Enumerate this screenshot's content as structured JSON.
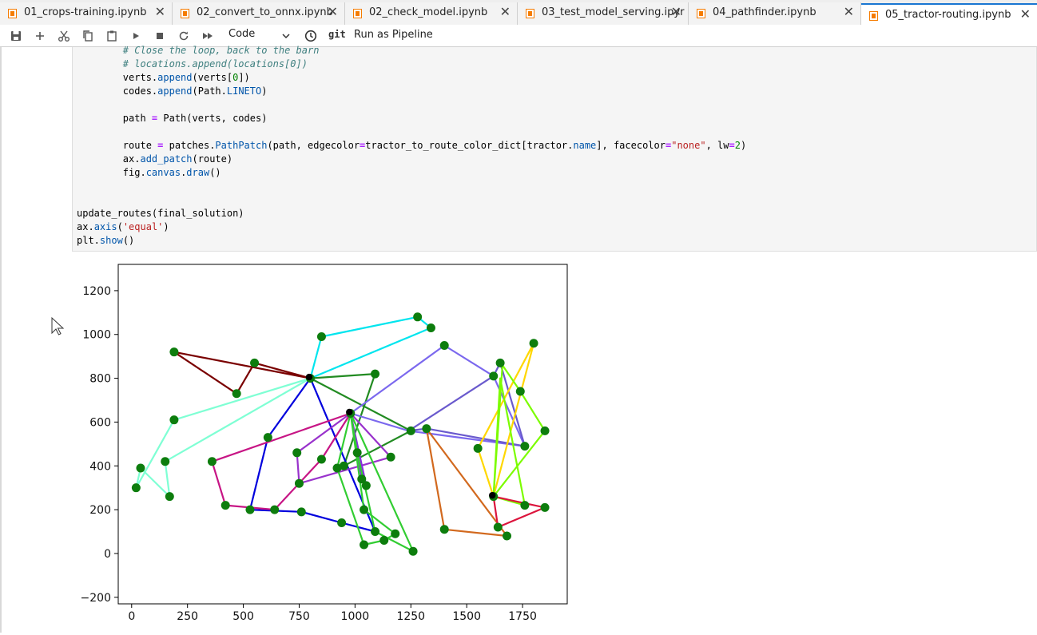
{
  "tabs": [
    {
      "label": "01_crops-training.ipynb",
      "active": false
    },
    {
      "label": "02_convert_to_onnx.ipynb",
      "active": false
    },
    {
      "label": "02_check_model.ipynb",
      "active": false
    },
    {
      "label": "03_test_model_serving.ipyr",
      "active": false
    },
    {
      "label": "04_pathfinder.ipynb",
      "active": false
    },
    {
      "label": "05_tractor-routing.ipynb",
      "active": true
    }
  ],
  "toolbar": {
    "cell_type": "Code",
    "git_label": "git",
    "pipeline_label": "Run as Pipeline",
    "icons": [
      "save-icon",
      "add-icon",
      "cut-icon",
      "copy-icon",
      "paste-icon",
      "run-icon",
      "stop-icon",
      "restart-icon",
      "run-all-icon"
    ]
  },
  "code_lines": [
    {
      "indent": "        ",
      "parts": [
        [
          "c",
          "# Close the loop, back to the barn"
        ]
      ]
    },
    {
      "indent": "        ",
      "parts": [
        [
          "c",
          "# locations.append(locations[0])"
        ]
      ]
    },
    {
      "indent": "        ",
      "parts": [
        [
          "t",
          "verts."
        ],
        [
          "a",
          "append"
        ],
        [
          "t",
          "(verts["
        ],
        [
          "n",
          "0"
        ],
        [
          "t",
          "])"
        ]
      ]
    },
    {
      "indent": "        ",
      "parts": [
        [
          "t",
          "codes."
        ],
        [
          "a",
          "append"
        ],
        [
          "t",
          "(Path."
        ],
        [
          "a",
          "LINETO"
        ],
        [
          "t",
          ")"
        ]
      ]
    },
    {
      "indent": "",
      "parts": []
    },
    {
      "indent": "        ",
      "parts": [
        [
          "t",
          "path "
        ],
        [
          "o",
          "="
        ],
        [
          "t",
          " Path(verts, codes)"
        ]
      ]
    },
    {
      "indent": "",
      "parts": []
    },
    {
      "indent": "        ",
      "parts": [
        [
          "t",
          "route "
        ],
        [
          "o",
          "="
        ],
        [
          "t",
          " patches."
        ],
        [
          "a",
          "PathPatch"
        ],
        [
          "t",
          "(path, edgecolor"
        ],
        [
          "o",
          "="
        ],
        [
          "t",
          "tractor_to_route_color_dict[tractor."
        ],
        [
          "a",
          "name"
        ],
        [
          "t",
          "], facecolor"
        ],
        [
          "o",
          "="
        ],
        [
          "s",
          "\"none\""
        ],
        [
          "t",
          ", lw"
        ],
        [
          "o",
          "="
        ],
        [
          "n",
          "2"
        ],
        [
          "t",
          ")"
        ]
      ]
    },
    {
      "indent": "        ",
      "parts": [
        [
          "t",
          "ax."
        ],
        [
          "a",
          "add_patch"
        ],
        [
          "t",
          "(route)"
        ]
      ]
    },
    {
      "indent": "        ",
      "parts": [
        [
          "t",
          "fig."
        ],
        [
          "a",
          "canvas"
        ],
        [
          "t",
          "."
        ],
        [
          "a",
          "draw"
        ],
        [
          "t",
          "()"
        ]
      ]
    },
    {
      "indent": "",
      "parts": []
    },
    {
      "indent": "",
      "parts": []
    },
    {
      "indent": "",
      "parts": [
        [
          "t",
          "update_routes(final_solution)"
        ]
      ]
    },
    {
      "indent": "",
      "parts": [
        [
          "t",
          "ax."
        ],
        [
          "a",
          "axis"
        ],
        [
          "t",
          "("
        ],
        [
          "s",
          "'equal'"
        ],
        [
          "t",
          ")"
        ]
      ]
    },
    {
      "indent": "",
      "parts": [
        [
          "t",
          "plt."
        ],
        [
          "a",
          "show"
        ],
        [
          "t",
          "()"
        ]
      ]
    }
  ],
  "chart_data": {
    "type": "line",
    "xlim": [
      -60,
      1950
    ],
    "ylim": [
      -230,
      1320
    ],
    "x_ticks": [
      0,
      250,
      500,
      750,
      1000,
      1250,
      1500,
      1750
    ],
    "y_ticks": [
      -200,
      0,
      200,
      400,
      600,
      800,
      1000,
      1200
    ],
    "point_color": "#0d7d0d",
    "routes": [
      {
        "color": "#00e5ee",
        "points": [
          [
            800,
            800
          ],
          [
            850,
            990
          ],
          [
            1280,
            1080
          ],
          [
            1340,
            1030
          ],
          [
            800,
            800
          ]
        ]
      },
      {
        "color": "#7a0000",
        "points": [
          [
            800,
            800
          ],
          [
            190,
            920
          ],
          [
            470,
            730
          ],
          [
            550,
            870
          ],
          [
            800,
            800
          ]
        ]
      },
      {
        "color": "#7fffd4",
        "points": [
          [
            800,
            800
          ],
          [
            190,
            610
          ],
          [
            20,
            300
          ],
          [
            40,
            390
          ],
          [
            170,
            260
          ],
          [
            150,
            420
          ],
          [
            800,
            800
          ]
        ]
      },
      {
        "color": "#228b22",
        "points": [
          [
            800,
            800
          ],
          [
            1090,
            820
          ],
          [
            950,
            400
          ],
          [
            1250,
            560
          ],
          [
            800,
            800
          ]
        ]
      },
      {
        "color": "#0000dd",
        "points": [
          [
            800,
            800
          ],
          [
            610,
            530
          ],
          [
            530,
            200
          ],
          [
            760,
            190
          ],
          [
            940,
            140
          ],
          [
            1090,
            100
          ],
          [
            800,
            800
          ]
        ]
      },
      {
        "color": "#c71585",
        "points": [
          [
            980,
            640
          ],
          [
            360,
            420
          ],
          [
            420,
            220
          ],
          [
            640,
            200
          ],
          [
            850,
            430
          ],
          [
            980,
            640
          ]
        ]
      },
      {
        "color": "#9932cc",
        "points": [
          [
            980,
            640
          ],
          [
            740,
            460
          ],
          [
            750,
            320
          ],
          [
            1160,
            440
          ],
          [
            980,
            640
          ]
        ]
      },
      {
        "color": "#8a2be2",
        "points": [
          [
            980,
            640
          ],
          [
            1030,
            340
          ],
          [
            1050,
            310
          ],
          [
            980,
            640
          ]
        ]
      },
      {
        "color": "#32cd32",
        "points": [
          [
            980,
            640
          ],
          [
            920,
            390
          ],
          [
            1040,
            40
          ],
          [
            1130,
            60
          ],
          [
            1180,
            90
          ],
          [
            1040,
            200
          ],
          [
            980,
            640
          ]
        ]
      },
      {
        "color": "#7b68ee",
        "points": [
          [
            980,
            640
          ],
          [
            1400,
            950
          ],
          [
            1620,
            810
          ],
          [
            1760,
            490
          ],
          [
            1240,
            560
          ],
          [
            980,
            640
          ]
        ]
      },
      {
        "color": "#32cd32",
        "points": [
          [
            980,
            640
          ],
          [
            1010,
            460
          ],
          [
            1090,
            100
          ],
          [
            1260,
            10
          ],
          [
            980,
            640
          ]
        ]
      },
      {
        "color": "#d2691e",
        "points": [
          [
            1320,
            570
          ],
          [
            1400,
            110
          ],
          [
            1680,
            80
          ],
          [
            1320,
            570
          ]
        ]
      },
      {
        "color": "#6a5acd",
        "points": [
          [
            1240,
            560
          ],
          [
            1320,
            570
          ],
          [
            1760,
            490
          ],
          [
            1650,
            870
          ],
          [
            1620,
            810
          ],
          [
            1240,
            560
          ]
        ]
      },
      {
        "color": "#ffd700",
        "points": [
          [
            1620,
            260
          ],
          [
            1550,
            480
          ],
          [
            1800,
            960
          ],
          [
            1620,
            260
          ]
        ]
      },
      {
        "color": "#7cfc00",
        "points": [
          [
            1620,
            260
          ],
          [
            1660,
            860
          ],
          [
            1740,
            740
          ],
          [
            1850,
            560
          ],
          [
            1620,
            260
          ]
        ]
      },
      {
        "color": "#7cfc00",
        "points": [
          [
            1620,
            260
          ],
          [
            1650,
            800
          ],
          [
            1760,
            220
          ],
          [
            1620,
            260
          ]
        ]
      },
      {
        "color": "#dc143c",
        "points": [
          [
            1620,
            260
          ],
          [
            1640,
            120
          ],
          [
            1850,
            210
          ],
          [
            1620,
            260
          ]
        ]
      }
    ],
    "points": [
      [
        800,
        800
      ],
      [
        980,
        640
      ],
      [
        1620,
        260
      ],
      [
        850,
        990
      ],
      [
        1280,
        1080
      ],
      [
        1340,
        1030
      ],
      [
        190,
        920
      ],
      [
        470,
        730
      ],
      [
        550,
        870
      ],
      [
        190,
        610
      ],
      [
        20,
        300
      ],
      [
        40,
        390
      ],
      [
        170,
        260
      ],
      [
        150,
        420
      ],
      [
        1090,
        820
      ],
      [
        950,
        400
      ],
      [
        1250,
        560
      ],
      [
        610,
        530
      ],
      [
        530,
        200
      ],
      [
        760,
        190
      ],
      [
        940,
        140
      ],
      [
        1090,
        100
      ],
      [
        360,
        420
      ],
      [
        420,
        220
      ],
      [
        640,
        200
      ],
      [
        850,
        430
      ],
      [
        740,
        460
      ],
      [
        750,
        320
      ],
      [
        1160,
        440
      ],
      [
        1030,
        340
      ],
      [
        1050,
        310
      ],
      [
        920,
        390
      ],
      [
        1040,
        40
      ],
      [
        1130,
        60
      ],
      [
        1180,
        90
      ],
      [
        1040,
        200
      ],
      [
        1400,
        950
      ],
      [
        1620,
        810
      ],
      [
        1760,
        490
      ],
      [
        1320,
        570
      ],
      [
        1400,
        110
      ],
      [
        1680,
        80
      ],
      [
        1650,
        870
      ],
      [
        1550,
        480
      ],
      [
        1800,
        960
      ],
      [
        1740,
        740
      ],
      [
        1850,
        560
      ],
      [
        1760,
        220
      ],
      [
        1640,
        120
      ],
      [
        1850,
        210
      ],
      [
        1010,
        460
      ],
      [
        1260,
        10
      ]
    ],
    "depots": [
      [
        800,
        800
      ],
      [
        980,
        640
      ],
      [
        1620,
        260
      ]
    ]
  }
}
